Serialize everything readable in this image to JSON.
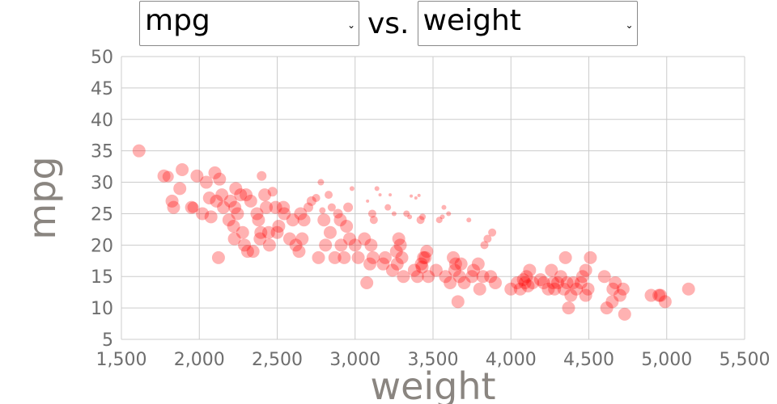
{
  "controls": {
    "y_select": {
      "value": "mpg"
    },
    "separator": "vs.",
    "x_select": {
      "value": "weight"
    },
    "chevron": "chevron-down-icon"
  },
  "chart_data": {
    "type": "scatter",
    "xlabel": "weight",
    "ylabel": "mpg",
    "xlim": [
      1500,
      5500
    ],
    "ylim": [
      5,
      50
    ],
    "x_ticks": [
      "1,500",
      "2,000",
      "2,500",
      "3,000",
      "3,500",
      "4,000",
      "4,500",
      "5,000",
      "5,500"
    ],
    "y_ticks": [
      "5",
      "10",
      "15",
      "20",
      "25",
      "30",
      "35",
      "40",
      "45",
      "50"
    ],
    "grid": true,
    "marker_color": "#ff0000",
    "marker_opacity": 0.3,
    "size_encoded": true,
    "points": [
      [
        1613,
        35,
        8
      ],
      [
        1773,
        31,
        8
      ],
      [
        1800,
        30.9,
        7
      ],
      [
        1825,
        27,
        8
      ],
      [
        1835,
        26,
        8
      ],
      [
        1875,
        29,
        8
      ],
      [
        1890,
        32,
        8
      ],
      [
        1950,
        26,
        8
      ],
      [
        1960,
        26,
        7
      ],
      [
        1985,
        31,
        8
      ],
      [
        2020,
        25,
        8
      ],
      [
        2045,
        30,
        8
      ],
      [
        2065,
        27.5,
        8
      ],
      [
        2075,
        24.5,
        8
      ],
      [
        2100,
        31.5,
        8
      ],
      [
        2110,
        27,
        8
      ],
      [
        2123,
        18,
        8
      ],
      [
        2130,
        30.5,
        8
      ],
      [
        2145,
        28,
        8
      ],
      [
        2155,
        26,
        8
      ],
      [
        2190,
        24,
        8
      ],
      [
        2200,
        27,
        8
      ],
      [
        2220,
        23,
        8
      ],
      [
        2225,
        21,
        8
      ],
      [
        2228,
        26,
        8
      ],
      [
        2234,
        29,
        8
      ],
      [
        2245,
        25,
        8
      ],
      [
        2265,
        28,
        8
      ],
      [
        2278,
        22,
        8
      ],
      [
        2290,
        20,
        8
      ],
      [
        2300,
        28,
        8
      ],
      [
        2310,
        19,
        8
      ],
      [
        2330,
        27,
        8
      ],
      [
        2345,
        19,
        8
      ],
      [
        2370,
        25,
        8
      ],
      [
        2380,
        24,
        8
      ],
      [
        2390,
        21,
        8
      ],
      [
        2395,
        22,
        8
      ],
      [
        2400,
        31,
        6
      ],
      [
        2420,
        28,
        8
      ],
      [
        2430,
        26,
        8
      ],
      [
        2445,
        22,
        8
      ],
      [
        2450,
        20,
        8
      ],
      [
        2470,
        28.5,
        6
      ],
      [
        2490,
        26,
        8
      ],
      [
        2500,
        22,
        8
      ],
      [
        2510,
        23,
        8
      ],
      [
        2540,
        26,
        8
      ],
      [
        2545,
        25,
        8
      ],
      [
        2580,
        21,
        8
      ],
      [
        2600,
        24,
        8
      ],
      [
        2620,
        20,
        8
      ],
      [
        2640,
        19,
        8
      ],
      [
        2650,
        25,
        8
      ],
      [
        2660,
        21,
        8
      ],
      [
        2672,
        24,
        8
      ],
      [
        2700,
        26,
        6
      ],
      [
        2720,
        27,
        6
      ],
      [
        2750,
        27.5,
        5
      ],
      [
        2765,
        18,
        8
      ],
      [
        2780,
        30,
        4
      ],
      [
        2790,
        25.5,
        4
      ],
      [
        2800,
        24,
        8
      ],
      [
        2810,
        20,
        8
      ],
      [
        2830,
        28,
        5
      ],
      [
        2840,
        22,
        8
      ],
      [
        2850,
        26,
        5
      ],
      [
        2870,
        18,
        8
      ],
      [
        2890,
        25,
        6
      ],
      [
        2905,
        24,
        8
      ],
      [
        2910,
        20,
        8
      ],
      [
        2930,
        18,
        8
      ],
      [
        2945,
        23,
        8
      ],
      [
        2955,
        26,
        6
      ],
      [
        2965,
        21,
        8
      ],
      [
        2980,
        29,
        3
      ],
      [
        3000,
        20,
        8
      ],
      [
        3020,
        18,
        8
      ],
      [
        3060,
        21,
        8
      ],
      [
        3075,
        14,
        8
      ],
      [
        3080,
        27,
        2
      ],
      [
        3095,
        17,
        8
      ],
      [
        3102,
        20,
        8
      ],
      [
        3110,
        25,
        5
      ],
      [
        3115,
        18,
        8
      ],
      [
        3120,
        24,
        5
      ],
      [
        3140,
        29,
        3
      ],
      [
        3160,
        28,
        2
      ],
      [
        3180,
        17,
        8
      ],
      [
        3193,
        18,
        8
      ],
      [
        3210,
        26,
        4
      ],
      [
        3225,
        28,
        2
      ],
      [
        3240,
        16,
        8
      ],
      [
        3250,
        25,
        3
      ],
      [
        3265,
        19,
        8
      ],
      [
        3270,
        17,
        8
      ],
      [
        3280,
        21,
        8
      ],
      [
        3290,
        20,
        8
      ],
      [
        3300,
        18,
        8
      ],
      [
        3310,
        15,
        8
      ],
      [
        3330,
        25,
        4
      ],
      [
        3350,
        24.5,
        3
      ],
      [
        3360,
        27.8,
        2
      ],
      [
        3380,
        16,
        8
      ],
      [
        3390,
        27.5,
        2
      ],
      [
        3400,
        15,
        8
      ],
      [
        3410,
        27.9,
        2
      ],
      [
        3420,
        24,
        5
      ],
      [
        3425,
        17,
        8
      ],
      [
        3430,
        16.5,
        8
      ],
      [
        3433,
        24.5,
        4
      ],
      [
        3439,
        18,
        8
      ],
      [
        3450,
        18,
        8
      ],
      [
        3460,
        19,
        8
      ],
      [
        3470,
        15,
        8
      ],
      [
        3520,
        16,
        8
      ],
      [
        3540,
        24,
        4
      ],
      [
        3560,
        24.5,
        3
      ],
      [
        3570,
        26,
        3
      ],
      [
        3580,
        15,
        8
      ],
      [
        3600,
        25,
        3
      ],
      [
        3610,
        14,
        8
      ],
      [
        3630,
        18,
        8
      ],
      [
        3640,
        16,
        8
      ],
      [
        3645,
        17,
        8
      ],
      [
        3660,
        11,
        8
      ],
      [
        3670,
        15,
        8
      ],
      [
        3680,
        17,
        8
      ],
      [
        3700,
        14,
        8
      ],
      [
        3730,
        24,
        3
      ],
      [
        3750,
        15,
        8
      ],
      [
        3760,
        16,
        8
      ],
      [
        3790,
        17,
        8
      ],
      [
        3800,
        13,
        8
      ],
      [
        3820,
        15,
        8
      ],
      [
        3830,
        20,
        5
      ],
      [
        3850,
        21,
        5
      ],
      [
        3870,
        15,
        8
      ],
      [
        3880,
        22,
        5
      ],
      [
        3900,
        14,
        8
      ],
      [
        4000,
        13,
        8
      ],
      [
        4040,
        14,
        8
      ],
      [
        4060,
        13,
        8
      ],
      [
        4080,
        14.5,
        8
      ],
      [
        4090,
        14,
        8
      ],
      [
        4100,
        15,
        8
      ],
      [
        4110,
        13.5,
        8
      ],
      [
        4120,
        16,
        8
      ],
      [
        4140,
        14,
        8
      ],
      [
        4190,
        14.5,
        8
      ],
      [
        4210,
        14,
        8
      ],
      [
        4240,
        13,
        8
      ],
      [
        4260,
        16,
        8
      ],
      [
        4270,
        14,
        8
      ],
      [
        4280,
        13,
        8
      ],
      [
        4300,
        14,
        8
      ],
      [
        4320,
        15,
        8
      ],
      [
        4340,
        13,
        8
      ],
      [
        4350,
        18,
        8
      ],
      [
        4360,
        14,
        8
      ],
      [
        4370,
        10,
        8
      ],
      [
        4385,
        12,
        8
      ],
      [
        4400,
        14,
        8
      ],
      [
        4420,
        13,
        8
      ],
      [
        4450,
        14,
        8
      ],
      [
        4460,
        15,
        8
      ],
      [
        4480,
        12,
        8
      ],
      [
        4480,
        16,
        8
      ],
      [
        4495,
        13,
        8
      ],
      [
        4510,
        18,
        8
      ],
      [
        4600,
        15,
        8
      ],
      [
        4615,
        10,
        8
      ],
      [
        4650,
        11,
        8
      ],
      [
        4655,
        13,
        8
      ],
      [
        4670,
        14,
        8
      ],
      [
        4700,
        12,
        8
      ],
      [
        4720,
        13,
        8
      ],
      [
        4730,
        9,
        8
      ],
      [
        4900,
        12,
        8
      ],
      [
        4950,
        12,
        8
      ],
      [
        4960,
        12,
        8
      ],
      [
        4990,
        11,
        8
      ],
      [
        5140,
        13,
        8
      ]
    ]
  }
}
